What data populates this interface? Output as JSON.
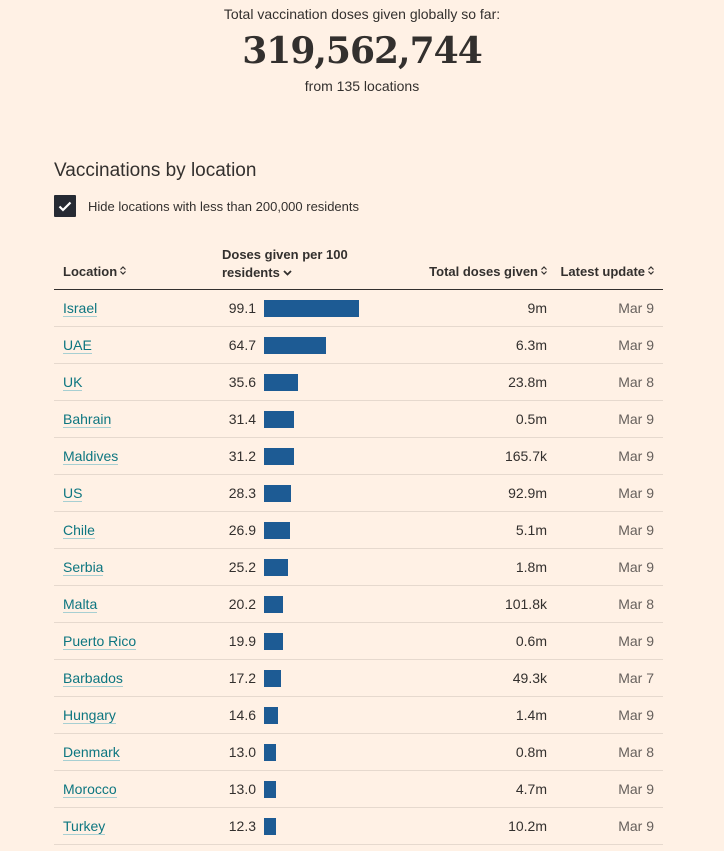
{
  "summary": {
    "label": "Total vaccination doses given globally so far:",
    "number": "319,562,744",
    "sub": "from 135 locations"
  },
  "section": {
    "title": "Vaccinations by location",
    "checkbox_label": "Hide locations with less than 200,000 residents",
    "checkbox_checked": true
  },
  "table": {
    "headers": {
      "location": "Location",
      "doses": "Doses given per 100 residents",
      "total": "Total doses given",
      "update": "Latest update"
    },
    "bar_max": 100,
    "bar_color": "#1d5b94",
    "rows": [
      {
        "location": "Israel",
        "doses": "99.1",
        "value": 99.1,
        "total": "9m",
        "update": "Mar 9"
      },
      {
        "location": "UAE",
        "doses": "64.7",
        "value": 64.7,
        "total": "6.3m",
        "update": "Mar 9"
      },
      {
        "location": "UK",
        "doses": "35.6",
        "value": 35.6,
        "total": "23.8m",
        "update": "Mar 8"
      },
      {
        "location": "Bahrain",
        "doses": "31.4",
        "value": 31.4,
        "total": "0.5m",
        "update": "Mar 9"
      },
      {
        "location": "Maldives",
        "doses": "31.2",
        "value": 31.2,
        "total": "165.7k",
        "update": "Mar 9"
      },
      {
        "location": "US",
        "doses": "28.3",
        "value": 28.3,
        "total": "92.9m",
        "update": "Mar 9"
      },
      {
        "location": "Chile",
        "doses": "26.9",
        "value": 26.9,
        "total": "5.1m",
        "update": "Mar 9"
      },
      {
        "location": "Serbia",
        "doses": "25.2",
        "value": 25.2,
        "total": "1.8m",
        "update": "Mar 9"
      },
      {
        "location": "Malta",
        "doses": "20.2",
        "value": 20.2,
        "total": "101.8k",
        "update": "Mar 8"
      },
      {
        "location": "Puerto Rico",
        "doses": "19.9",
        "value": 19.9,
        "total": "0.6m",
        "update": "Mar 9"
      },
      {
        "location": "Barbados",
        "doses": "17.2",
        "value": 17.2,
        "total": "49.3k",
        "update": "Mar 7"
      },
      {
        "location": "Hungary",
        "doses": "14.6",
        "value": 14.6,
        "total": "1.4m",
        "update": "Mar 9"
      },
      {
        "location": "Denmark",
        "doses": "13.0",
        "value": 13.0,
        "total": "0.8m",
        "update": "Mar 8"
      },
      {
        "location": "Morocco",
        "doses": "13.0",
        "value": 13.0,
        "total": "4.7m",
        "update": "Mar 9"
      },
      {
        "location": "Turkey",
        "doses": "12.3",
        "value": 12.3,
        "total": "10.2m",
        "update": "Mar 9"
      }
    ]
  }
}
